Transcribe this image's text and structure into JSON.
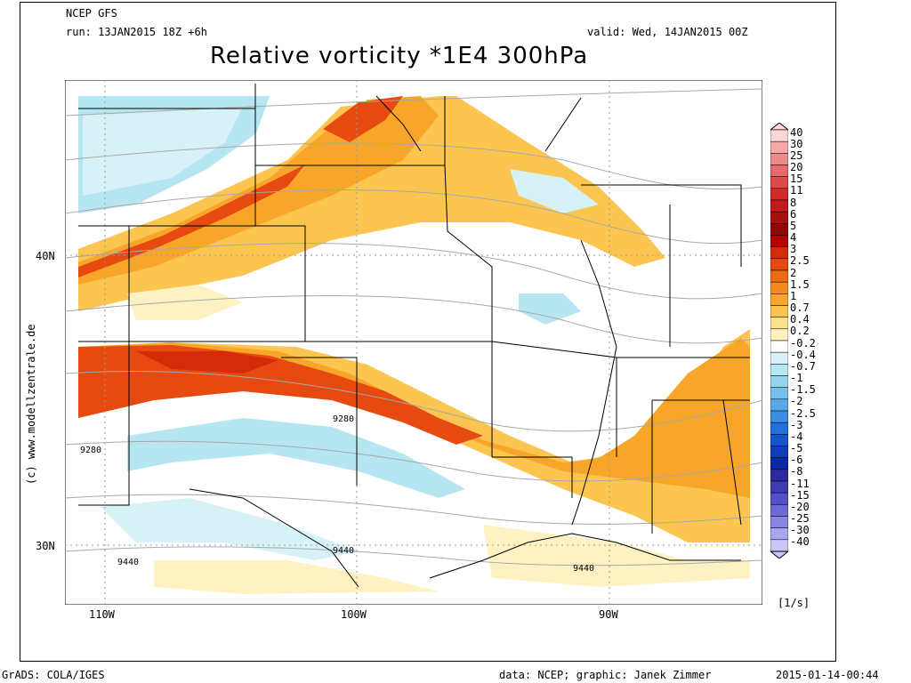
{
  "header": {
    "model": "NCEP GFS",
    "run": "run: 13JAN2015 18Z +6h",
    "valid": "valid: Wed, 14JAN2015 00Z",
    "title": "Relative vorticity *1E4 300hPa"
  },
  "axes": {
    "lat_labels": [
      "40N",
      "30N"
    ],
    "lon_labels": [
      "110W",
      "100W",
      "90W"
    ]
  },
  "contour_labels": [
    "9280",
    "9280",
    "9440",
    "9440",
    "9440"
  ],
  "legend": {
    "values": [
      "40",
      "30",
      "25",
      "20",
      "15",
      "11",
      "8",
      "6",
      "5",
      "4",
      "3",
      "2.5",
      "2",
      "1.5",
      "1",
      "0.7",
      "0.4",
      "0.2",
      "-0.2",
      "-0.4",
      "-0.7",
      "-1",
      "-1.5",
      "-2",
      "-2.5",
      "-3",
      "-4",
      "-5",
      "-6",
      "-8",
      "-11",
      "-15",
      "-20",
      "-25",
      "-30",
      "-40"
    ],
    "colors": [
      "#fcd6d6",
      "#f4a8a8",
      "#ef8a8a",
      "#e66a6a",
      "#de4848",
      "#d32a2a",
      "#c21a1a",
      "#a81010",
      "#8e0a0a",
      "#b60000",
      "#d42b08",
      "#e64a10",
      "#ef6a14",
      "#f48a1c",
      "#f7a62a",
      "#fbc550",
      "#fde08c",
      "#fff2c2",
      "#ffffff",
      "#d6f2f7",
      "#b6e6f2",
      "#96d4ee",
      "#78c0ec",
      "#5aa8e8",
      "#3c8ce2",
      "#2270da",
      "#1656cc",
      "#0f3eb8",
      "#0b2aa0",
      "#2c2a9c",
      "#3e3ab0",
      "#5450c4",
      "#6c6ad4",
      "#8886e2",
      "#a8a6ee",
      "#c8c6f6"
    ],
    "units": "[1/s]"
  },
  "footer": {
    "left": "GrADS: COLA/IGES",
    "center": "data: NCEP; graphic: Janek Zimmer",
    "right": "2015-01-14-00:44",
    "side": "(c) www.modellzentrale.de"
  }
}
